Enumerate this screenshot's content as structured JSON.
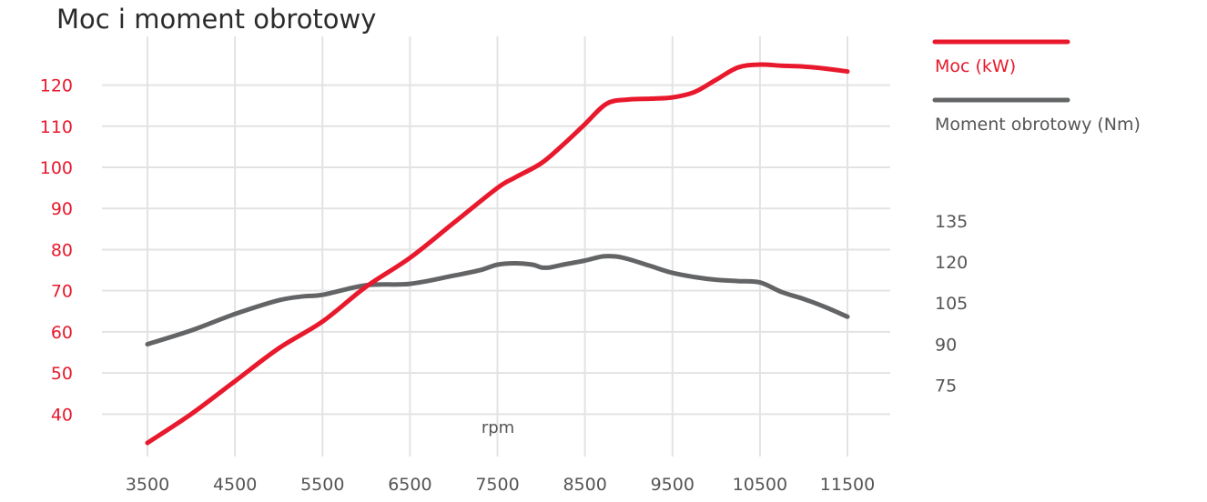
{
  "chart_data": {
    "type": "line",
    "title": "Moc i moment obrotowy",
    "xlabel": "rpm",
    "x_ticks": [
      3500,
      4500,
      5500,
      6500,
      7500,
      8500,
      9500,
      10500,
      11500
    ],
    "xlim": [
      3500,
      11500
    ],
    "y_left_ticks": [
      40,
      50,
      60,
      70,
      80,
      90,
      100,
      110,
      120
    ],
    "y_left_range": [
      33,
      123
    ],
    "y_right_ticks": [
      75,
      90,
      105,
      120,
      135
    ],
    "y_right_range": [
      54,
      189
    ],
    "grid": true,
    "legend_position": "top-right",
    "series": [
      {
        "name": "Moc (kW)",
        "axis": "left",
        "color": "#e8192c",
        "x": [
          3500,
          4000,
          4500,
          5000,
          5500,
          6000,
          6500,
          7000,
          7500,
          7700,
          8000,
          8250,
          8500,
          8750,
          9000,
          9250,
          9500,
          9750,
          10000,
          10250,
          10500,
          10750,
          11000,
          11250,
          11500
        ],
        "y": [
          33,
          40,
          48,
          56,
          62.5,
          71,
          78,
          86.5,
          95,
          97.5,
          101,
          105.5,
          110.5,
          115.5,
          116.5,
          116.7,
          117,
          118.3,
          121.3,
          124.3,
          125,
          124.7,
          124.5,
          124,
          123.3
        ]
      },
      {
        "name": "Moment obrotowy (Nm)",
        "axis": "right",
        "color": "#636466",
        "x": [
          3500,
          4000,
          4500,
          5000,
          5300,
          5500,
          6000,
          6500,
          7000,
          7300,
          7500,
          7700,
          7900,
          8000,
          8100,
          8250,
          8500,
          8700,
          8850,
          9000,
          9250,
          9500,
          9750,
          10000,
          10250,
          10500,
          10750,
          11000,
          11250,
          11500
        ],
        "y": [
          90,
          95,
          101,
          106,
          107.5,
          108,
          111.5,
          112,
          115,
          117,
          119,
          119.5,
          119,
          118,
          118,
          119,
          120.5,
          122,
          122,
          121,
          118.5,
          116,
          114.5,
          113.5,
          113,
          112.5,
          109,
          106.5,
          103.5,
          100
        ]
      }
    ]
  }
}
